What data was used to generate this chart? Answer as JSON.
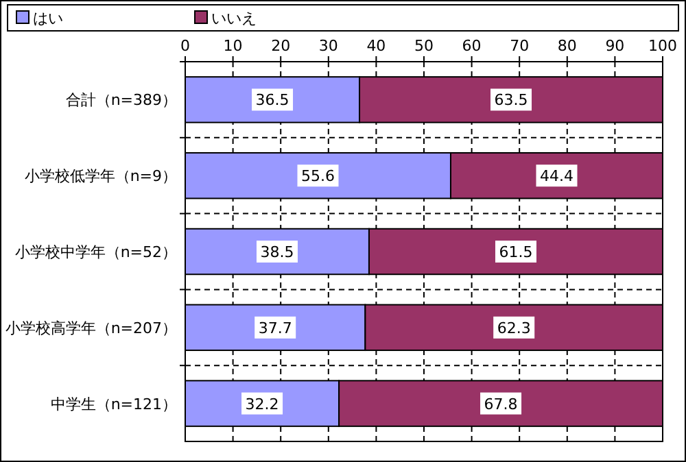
{
  "chart_data": {
    "type": "bar",
    "orientation": "horizontal",
    "stacked": true,
    "categories": [
      "合計（n=389）",
      "小学校低学年（n=9）",
      "小学校中学年（n=52）",
      "小学校高学年（n=207）",
      "中学生（n=121）"
    ],
    "series": [
      {
        "name": "はい",
        "color": "#9999ff",
        "values": [
          36.5,
          55.6,
          38.5,
          37.7,
          32.2
        ]
      },
      {
        "name": "いいえ",
        "color": "#993366",
        "values": [
          63.5,
          44.4,
          61.5,
          62.3,
          67.8
        ]
      }
    ],
    "xlim": [
      0,
      100
    ],
    "xticks": [
      0,
      10,
      20,
      30,
      40,
      50,
      60,
      70,
      80,
      90,
      100
    ],
    "grid": true,
    "legend": "top left",
    "data_labels": true
  }
}
